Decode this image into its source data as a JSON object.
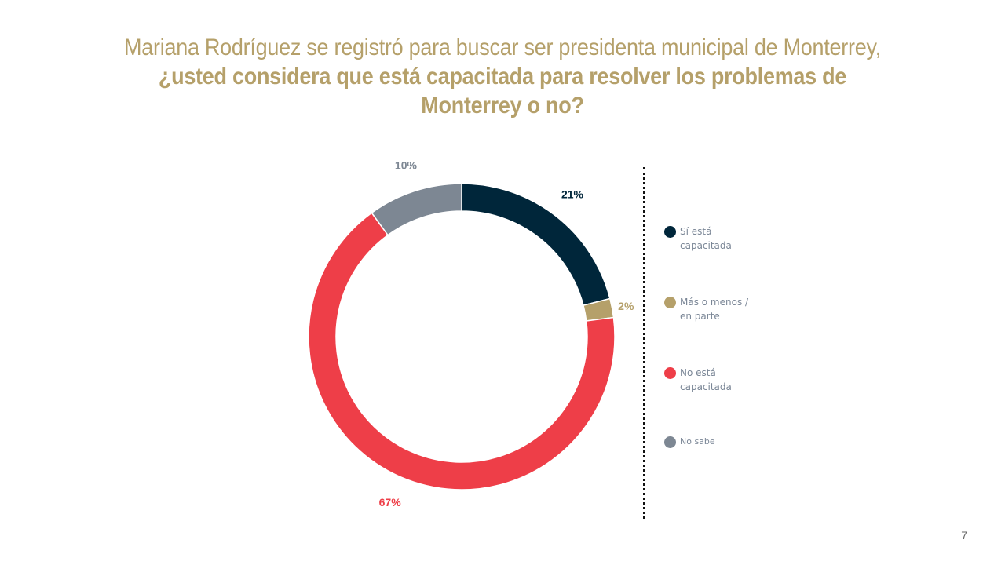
{
  "title": {
    "line_normal": "Mariana Rodríguez se registró para buscar ser presidenta municipal de Monterrey, ",
    "line_bold": "¿usted considera que está capacitada para resolver los problemas de Monterrey o no?"
  },
  "chart_data": {
    "type": "pie",
    "donut": true,
    "categories": [
      "Sí está capacitada",
      "Más o menos / en parte",
      "No está capacitada",
      "No sabe"
    ],
    "values": [
      21,
      2,
      67,
      10
    ],
    "value_labels": [
      "21%",
      "2%",
      "67%",
      "10%"
    ],
    "colors": [
      "#00263a",
      "#b5a06a",
      "#ee3e48",
      "#7d8793"
    ],
    "legend_position": "right"
  },
  "legend": [
    {
      "label": "Sí está capacitada",
      "color": "#00263a"
    },
    {
      "label": "Más o menos / en parte",
      "color": "#b5a06a"
    },
    {
      "label": "No está capacitada",
      "color": "#ee3e48"
    },
    {
      "label": "No sabe",
      "color": "#7d8793"
    }
  ],
  "page_number": "7"
}
